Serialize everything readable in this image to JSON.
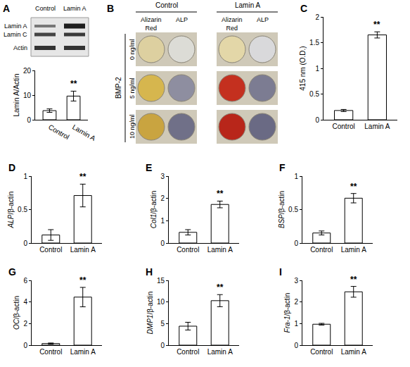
{
  "chart_data": [
    {
      "type": "bar",
      "ylabel": "Lamin A/Actin",
      "categories": [
        "Control",
        "Lamin A"
      ],
      "values": [
        3.7,
        9.6
      ],
      "errors": [
        0.7,
        2.0
      ],
      "ylim": [
        0,
        20
      ],
      "yticks": [
        0,
        10,
        20
      ],
      "annotations": [
        {
          "x": "Lamin A",
          "text": "**"
        }
      ],
      "color": "#ffffff"
    },
    {
      "panel": "C",
      "type": "bar",
      "ylabel": "415 nm (O.D.)",
      "categories": [
        "Control",
        "Lamin A"
      ],
      "values": [
        0.18,
        1.65
      ],
      "errors": [
        0.02,
        0.06
      ],
      "ylim": [
        0,
        2
      ],
      "yticks": [
        0,
        0.5,
        1,
        1.5,
        2
      ],
      "annotations": [
        {
          "x": "Lamin A",
          "text": "**"
        }
      ],
      "color": "#ffffff"
    },
    {
      "panel": "D",
      "type": "bar",
      "ylabel": "ALP/β-actin",
      "categories": [
        "Control",
        "Lamin A"
      ],
      "values": [
        0.12,
        0.71
      ],
      "errors": [
        0.08,
        0.17
      ],
      "ylim": [
        0,
        1
      ],
      "yticks": [
        0,
        0.5,
        1
      ],
      "annotations": [
        {
          "x": "Lamin A",
          "text": "**"
        }
      ],
      "color": "#ffffff"
    },
    {
      "panel": "E",
      "type": "bar",
      "ylabel": "Col1/β-actin",
      "categories": [
        "Control",
        "Lamin A"
      ],
      "values": [
        0.48,
        1.73
      ],
      "errors": [
        0.12,
        0.15
      ],
      "ylim": [
        0,
        3
      ],
      "yticks": [
        0,
        1,
        2,
        3
      ],
      "annotations": [
        {
          "x": "Lamin A",
          "text": "**"
        }
      ],
      "color": "#ffffff"
    },
    {
      "panel": "F",
      "type": "bar",
      "ylabel": "BSP/β-actin",
      "categories": [
        "Control",
        "Lamin A"
      ],
      "values": [
        0.15,
        0.67
      ],
      "errors": [
        0.03,
        0.07
      ],
      "ylim": [
        0,
        1
      ],
      "yticks": [
        0,
        0.5,
        1
      ],
      "annotations": [
        {
          "x": "Lamin A",
          "text": "**"
        }
      ],
      "color": "#ffffff"
    },
    {
      "panel": "G",
      "type": "bar",
      "ylabel": "OC/β-actin",
      "categories": [
        "Control",
        "Lamin A"
      ],
      "values": [
        0.15,
        4.45
      ],
      "errors": [
        0.05,
        0.9
      ],
      "ylim": [
        0,
        6
      ],
      "yticks": [
        0,
        2,
        4,
        6
      ],
      "annotations": [
        {
          "x": "Lamin A",
          "text": "**"
        }
      ],
      "color": "#ffffff"
    },
    {
      "panel": "H",
      "type": "bar",
      "ylabel": "DMP1/β-actin",
      "categories": [
        "Control",
        "Lamin A"
      ],
      "values": [
        4.4,
        10.3
      ],
      "errors": [
        0.9,
        1.4
      ],
      "ylim": [
        0,
        15
      ],
      "yticks": [
        0,
        5,
        10,
        15
      ],
      "annotations": [
        {
          "x": "Lamin A",
          "text": "**"
        }
      ],
      "color": "#ffffff"
    },
    {
      "panel": "I",
      "type": "bar",
      "ylabel": "Fra-1/β-actin",
      "categories": [
        "Control",
        "Lamin A"
      ],
      "values": [
        0.97,
        2.47
      ],
      "errors": [
        0.04,
        0.25
      ],
      "ylim": [
        0,
        3
      ],
      "yticks": [
        0,
        1,
        2,
        3
      ],
      "annotations": [
        {
          "x": "Lamin A",
          "text": "**"
        }
      ],
      "color": "#ffffff"
    }
  ],
  "blot": {
    "panel": "A",
    "lanes": [
      "Control",
      "Lamin A"
    ],
    "bands": [
      "Lamin A",
      "Lamin C",
      "Actin"
    ]
  },
  "staining": {
    "panel": "B",
    "groups": [
      "Control",
      "Lamin A"
    ],
    "stains": [
      "Alizarin Red",
      "ALP"
    ],
    "factor": "BMP-2",
    "doses": [
      "0 ng/ml",
      "5 ng/ml",
      "10 ng/ml"
    ],
    "colors": [
      [
        "#ddd0a0",
        "#dcdcd6",
        "#e3d7a8",
        "#d9d9db"
      ],
      [
        "#d6b64e",
        "#8e8ea0",
        "#c4301f",
        "#7c7c92"
      ],
      [
        "#c9a440",
        "#707088",
        "#b8261a",
        "#6a6a84"
      ]
    ]
  }
}
